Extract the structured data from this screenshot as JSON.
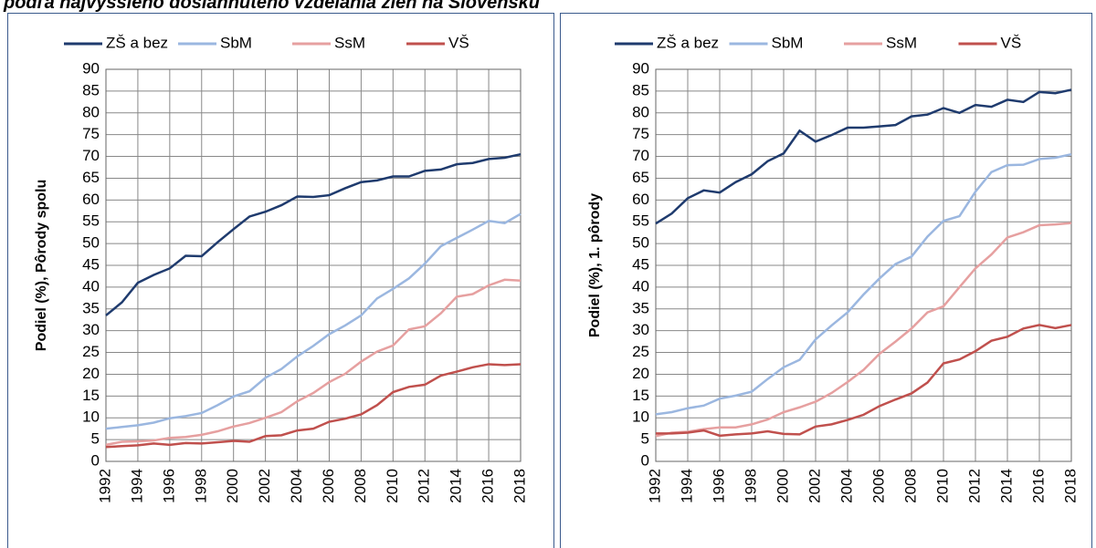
{
  "title": "podľa najvyššieho dosiahnutého vzdelania žien na Slovensku",
  "chart_data": [
    {
      "type": "line",
      "ylabel": "Podiel (%), Pôrody spolu",
      "xlim": [
        1992,
        2018
      ],
      "xticks": [
        1992,
        1994,
        1996,
        1998,
        2000,
        2002,
        2004,
        2006,
        2008,
        2010,
        2012,
        2014,
        2016,
        2018
      ],
      "ylim": [
        0,
        90
      ],
      "yticks": [
        0,
        5,
        10,
        15,
        20,
        25,
        30,
        35,
        40,
        45,
        50,
        55,
        60,
        65,
        70,
        75,
        80,
        85,
        90
      ],
      "grid": true,
      "legend": "top",
      "x": [
        1992,
        1993,
        1994,
        1995,
        1996,
        1997,
        1998,
        1999,
        2000,
        2001,
        2002,
        2003,
        2004,
        2005,
        2006,
        2007,
        2008,
        2009,
        2010,
        2011,
        2012,
        2013,
        2014,
        2015,
        2016,
        2017,
        2018
      ],
      "series": [
        {
          "name": "ZŠ a bez",
          "color": "#1f3b6e",
          "values": [
            33.5,
            36.5,
            41,
            42.8,
            44.3,
            47.2,
            47.1,
            50.3,
            53.3,
            56.2,
            57.3,
            58.8,
            60.8,
            60.7,
            61.1,
            62.7,
            64.1,
            64.5,
            65.4,
            65.4,
            66.7,
            67,
            68.2,
            68.5,
            69.4,
            69.7,
            70.5
          ]
        },
        {
          "name": "SbM",
          "color": "#9bb7e0",
          "values": [
            7.5,
            7.9,
            8.3,
            8.9,
            9.9,
            10.4,
            11.1,
            12.9,
            14.9,
            16.1,
            19.2,
            21.2,
            24.1,
            26.5,
            29.2,
            31.2,
            33.5,
            37.4,
            39.6,
            42,
            45.4,
            49.4,
            51.3,
            53.2,
            55.2,
            54.7,
            56.8
          ]
        },
        {
          "name": "SsM",
          "color": "#e6a0a0",
          "values": [
            3.8,
            4.5,
            4.6,
            4.8,
            5.4,
            5.6,
            6.1,
            6.9,
            8,
            8.8,
            10,
            11.3,
            13.8,
            15.7,
            18.2,
            20.1,
            22.9,
            25.2,
            26.6,
            30.3,
            31,
            34,
            37.8,
            38.4,
            40.4,
            41.7,
            41.5
          ]
        },
        {
          "name": "VŠ",
          "color": "#c0504d",
          "values": [
            3.3,
            3.5,
            3.7,
            4.1,
            3.8,
            4.2,
            4.1,
            4.4,
            4.7,
            4.5,
            5.8,
            6,
            7.1,
            7.5,
            9.1,
            9.8,
            10.8,
            12.9,
            15.9,
            17.1,
            17.6,
            19.7,
            20.6,
            21.6,
            22.3,
            22.1,
            22.3
          ]
        }
      ]
    },
    {
      "type": "line",
      "ylabel": "Podiel (%), 1. pôrody",
      "xlim": [
        1992,
        2018
      ],
      "xticks": [
        1992,
        1994,
        1996,
        1998,
        2000,
        2002,
        2004,
        2006,
        2008,
        2010,
        2012,
        2014,
        2016,
        2018
      ],
      "ylim": [
        0,
        90
      ],
      "yticks": [
        0,
        5,
        10,
        15,
        20,
        25,
        30,
        35,
        40,
        45,
        50,
        55,
        60,
        65,
        70,
        75,
        80,
        85,
        90
      ],
      "grid": true,
      "legend": "top",
      "x": [
        1992,
        1993,
        1994,
        1995,
        1996,
        1997,
        1998,
        1999,
        2000,
        2001,
        2002,
        2003,
        2004,
        2005,
        2006,
        2007,
        2008,
        2009,
        2010,
        2011,
        2012,
        2013,
        2014,
        2015,
        2016,
        2017,
        2018
      ],
      "series": [
        {
          "name": "ZŠ a bez",
          "color": "#1f3b6e",
          "values": [
            54.6,
            56.9,
            60.4,
            62.2,
            61.7,
            64.1,
            65.9,
            68.9,
            70.7,
            75.9,
            73.4,
            74.9,
            76.6,
            76.6,
            76.9,
            77.2,
            79.2,
            79.6,
            81.1,
            80,
            81.8,
            81.4,
            83,
            82.5,
            84.8,
            84.5,
            85.3
          ]
        },
        {
          "name": "SbM",
          "color": "#9bb7e0",
          "values": [
            10.8,
            11.3,
            12.2,
            12.8,
            14.4,
            15.1,
            16,
            18.9,
            21.6,
            23.3,
            28,
            31.2,
            34.2,
            38.3,
            42,
            45.3,
            47,
            51.6,
            55.2,
            56.3,
            61.9,
            66.4,
            68,
            68.1,
            69.4,
            69.7,
            70.5
          ]
        },
        {
          "name": "SsM",
          "color": "#e6a0a0",
          "values": [
            5.8,
            6.6,
            6.8,
            7.4,
            7.8,
            7.8,
            8.5,
            9.6,
            11.3,
            12.4,
            13.7,
            15.7,
            18.2,
            21,
            24.7,
            27.5,
            30.5,
            34.2,
            35.6,
            40,
            44.3,
            47.5,
            51.4,
            52.6,
            54.2,
            54.4,
            54.7
          ]
        },
        {
          "name": "VŠ",
          "color": "#c0504d",
          "values": [
            6.4,
            6.4,
            6.6,
            7.1,
            5.9,
            6.2,
            6.4,
            6.9,
            6.3,
            6.2,
            8,
            8.5,
            9.5,
            10.7,
            12.7,
            14.2,
            15.6,
            18.1,
            22.5,
            23.4,
            25.3,
            27.7,
            28.6,
            30.5,
            31.3,
            30.6,
            31.3
          ]
        }
      ]
    }
  ]
}
